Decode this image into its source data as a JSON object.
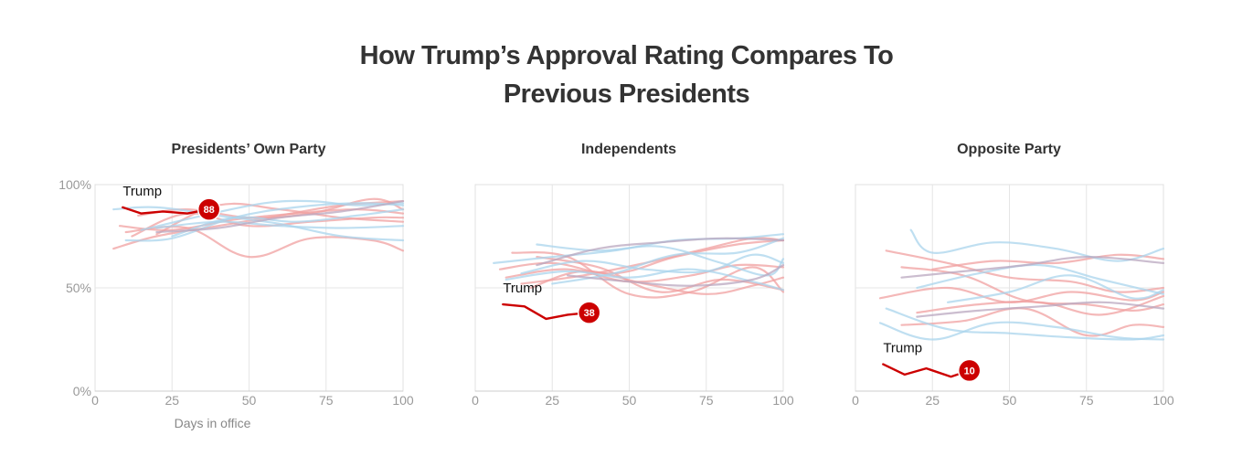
{
  "title": {
    "line1": "How Trump’s Approval Rating Compares To",
    "line2": "Previous Presidents"
  },
  "colors": {
    "trump": "#cc0000",
    "republican": "#f0a0a0",
    "democrat": "#a9d4ec",
    "grid": "#e6e6e6",
    "frame": "#e0e0e0",
    "text": "#333333",
    "tick": "#999999"
  },
  "chart_data": [
    {
      "type": "line",
      "title": "Presidents’ Own Party",
      "xlabel": "Days in office",
      "ylabel": "",
      "xlim": [
        0,
        100
      ],
      "ylim": [
        0,
        100
      ],
      "xticks": [
        "0",
        "25",
        "50",
        "75",
        "100"
      ],
      "yticks": [
        "0%",
        "50%",
        "100%"
      ],
      "grid": true,
      "trump": {
        "label": "Trump",
        "value": "88",
        "x": [
          9,
          15,
          22,
          30,
          37
        ],
        "y": [
          89,
          86,
          87,
          86,
          88
        ]
      },
      "series": [
        {
          "party": "R",
          "x": [
            6,
            20,
            40,
            60,
            80,
            100
          ],
          "y": [
            69,
            75,
            80,
            85,
            90,
            92
          ]
        },
        {
          "party": "R",
          "x": [
            8,
            25,
            45,
            65,
            85,
            100
          ],
          "y": [
            80,
            78,
            83,
            86,
            88,
            86
          ]
        },
        {
          "party": "R",
          "x": [
            10,
            30,
            50,
            70,
            90,
            100
          ],
          "y": [
            77,
            79,
            65,
            74,
            73,
            68
          ]
        },
        {
          "party": "R",
          "x": [
            12,
            30,
            50,
            70,
            90,
            100
          ],
          "y": [
            75,
            86,
            80,
            82,
            84,
            84
          ]
        },
        {
          "party": "R",
          "x": [
            14,
            30,
            50,
            70,
            90,
            100
          ],
          "y": [
            85,
            88,
            84,
            86,
            93,
            88
          ]
        },
        {
          "party": "R",
          "x": [
            20,
            40,
            60,
            80,
            100
          ],
          "y": [
            76,
            90,
            88,
            84,
            82
          ]
        },
        {
          "party": "D",
          "x": [
            6,
            20,
            40,
            60,
            80,
            100
          ],
          "y": [
            88,
            89,
            85,
            81,
            75,
            73
          ]
        },
        {
          "party": "D",
          "x": [
            10,
            25,
            45,
            65,
            85,
            100
          ],
          "y": [
            73,
            74,
            84,
            89,
            91,
            90
          ]
        },
        {
          "party": "D",
          "x": [
            15,
            35,
            55,
            70,
            85,
            100
          ],
          "y": [
            78,
            85,
            91,
            92,
            90,
            91
          ]
        },
        {
          "party": "D",
          "x": [
            20,
            40,
            60,
            80,
            100
          ],
          "y": [
            79,
            82,
            80,
            79,
            80
          ]
        },
        {
          "party": "D",
          "x": [
            25,
            45,
            65,
            85,
            100
          ],
          "y": [
            75,
            84,
            82,
            85,
            88
          ]
        },
        {
          "party": "M",
          "x": [
            20,
            40,
            60,
            80,
            100
          ],
          "y": [
            77,
            79,
            84,
            87,
            92
          ]
        }
      ]
    },
    {
      "type": "line",
      "title": "Independents",
      "xlabel": "",
      "ylabel": "",
      "xlim": [
        0,
        100
      ],
      "ylim": [
        0,
        100
      ],
      "xticks": [
        "0",
        "25",
        "50",
        "75",
        "100"
      ],
      "yticks": [],
      "grid": true,
      "trump": {
        "label": "Trump",
        "value": "38",
        "x": [
          9,
          16,
          23,
          30,
          37
        ],
        "y": [
          42,
          41,
          35,
          37,
          38
        ]
      },
      "series": [
        {
          "party": "R",
          "x": [
            8,
            25,
            45,
            65,
            85,
            100
          ],
          "y": [
            59,
            62,
            57,
            65,
            71,
            73
          ]
        },
        {
          "party": "R",
          "x": [
            10,
            30,
            50,
            70,
            85,
            100
          ],
          "y": [
            55,
            59,
            53,
            56,
            61,
            60
          ]
        },
        {
          "party": "R",
          "x": [
            12,
            30,
            50,
            70,
            90,
            100
          ],
          "y": [
            67,
            65,
            47,
            48,
            60,
            48
          ]
        },
        {
          "party": "R",
          "x": [
            15,
            35,
            55,
            75,
            90,
            100
          ],
          "y": [
            52,
            56,
            62,
            69,
            74,
            73
          ]
        },
        {
          "party": "R",
          "x": [
            18,
            35,
            55,
            75,
            90,
            100
          ],
          "y": [
            50,
            58,
            52,
            47,
            51,
            55
          ]
        },
        {
          "party": "R",
          "x": [
            20,
            40,
            60,
            80,
            100
          ],
          "y": [
            65,
            60,
            48,
            54,
            49
          ]
        },
        {
          "party": "D",
          "x": [
            6,
            25,
            45,
            65,
            85,
            100
          ],
          "y": [
            62,
            65,
            68,
            73,
            74,
            76
          ]
        },
        {
          "party": "D",
          "x": [
            10,
            30,
            50,
            70,
            90,
            100
          ],
          "y": [
            54,
            58,
            55,
            59,
            53,
            49
          ]
        },
        {
          "party": "D",
          "x": [
            15,
            35,
            55,
            75,
            90,
            100
          ],
          "y": [
            57,
            63,
            59,
            58,
            66,
            62
          ]
        },
        {
          "party": "D",
          "x": [
            20,
            40,
            60,
            80,
            95,
            100
          ],
          "y": [
            71,
            68,
            70,
            62,
            56,
            64
          ]
        },
        {
          "party": "D",
          "x": [
            25,
            45,
            65,
            85,
            100
          ],
          "y": [
            52,
            57,
            66,
            67,
            74
          ]
        },
        {
          "party": "M",
          "x": [
            20,
            40,
            60,
            80,
            100
          ],
          "y": [
            61,
            69,
            72,
            74,
            73
          ]
        },
        {
          "party": "M",
          "x": [
            30,
            50,
            70,
            90,
            100
          ],
          "y": [
            56,
            53,
            51,
            54,
            61
          ]
        }
      ]
    },
    {
      "type": "line",
      "title": "Opposite Party",
      "xlabel": "",
      "ylabel": "",
      "xlim": [
        0,
        100
      ],
      "ylim": [
        0,
        100
      ],
      "xticks": [
        "0",
        "25",
        "50",
        "75",
        "100"
      ],
      "yticks": [],
      "grid": true,
      "trump": {
        "label": "Trump",
        "value": "10",
        "x": [
          9,
          16,
          23,
          31,
          37
        ],
        "y": [
          13,
          8,
          11,
          7,
          10
        ]
      },
      "series": [
        {
          "party": "R",
          "x": [
            10,
            30,
            50,
            70,
            85,
            100
          ],
          "y": [
            68,
            62,
            55,
            53,
            48,
            50
          ]
        },
        {
          "party": "R",
          "x": [
            15,
            35,
            55,
            75,
            90,
            100
          ],
          "y": [
            60,
            56,
            44,
            42,
            39,
            42
          ]
        },
        {
          "party": "R",
          "x": [
            8,
            30,
            50,
            70,
            90,
            100
          ],
          "y": [
            45,
            50,
            43,
            48,
            44,
            48
          ]
        },
        {
          "party": "R",
          "x": [
            15,
            35,
            55,
            75,
            90,
            100
          ],
          "y": [
            32,
            34,
            40,
            27,
            32,
            31
          ]
        },
        {
          "party": "R",
          "x": [
            20,
            40,
            60,
            80,
            100
          ],
          "y": [
            38,
            42,
            43,
            37,
            46
          ]
        },
        {
          "party": "R",
          "x": [
            25,
            45,
            65,
            85,
            100
          ],
          "y": [
            59,
            63,
            62,
            66,
            64
          ]
        },
        {
          "party": "D",
          "x": [
            18,
            25,
            45,
            65,
            85,
            100
          ],
          "y": [
            78,
            67,
            72,
            69,
            63,
            69
          ]
        },
        {
          "party": "D",
          "x": [
            8,
            25,
            45,
            65,
            85,
            100
          ],
          "y": [
            33,
            25,
            33,
            31,
            26,
            25
          ]
        },
        {
          "party": "D",
          "x": [
            10,
            30,
            50,
            70,
            90,
            100
          ],
          "y": [
            40,
            30,
            28,
            26,
            25,
            27
          ]
        },
        {
          "party": "D",
          "x": [
            20,
            40,
            60,
            80,
            100
          ],
          "y": [
            50,
            57,
            61,
            54,
            47
          ]
        },
        {
          "party": "D",
          "x": [
            30,
            50,
            70,
            90,
            100
          ],
          "y": [
            43,
            48,
            56,
            45,
            49
          ]
        },
        {
          "party": "M",
          "x": [
            15,
            35,
            55,
            75,
            100
          ],
          "y": [
            55,
            58,
            61,
            65,
            62
          ]
        },
        {
          "party": "M",
          "x": [
            20,
            40,
            60,
            80,
            100
          ],
          "y": [
            36,
            39,
            41,
            43,
            40
          ]
        }
      ]
    }
  ]
}
